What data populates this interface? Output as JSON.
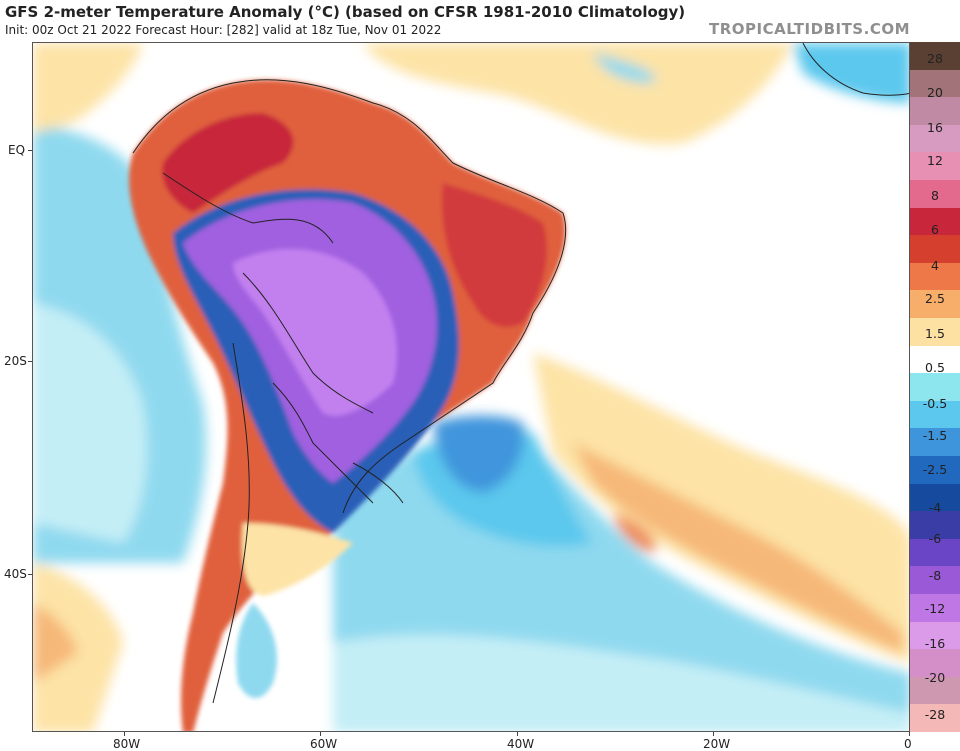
{
  "header": {
    "title": "GFS 2-meter Temperature Anomaly (°C) (based on CFSR 1981-2010 Climatology)",
    "subtitle": "Init: 00z Oct 21 2022   Forecast Hour: [282]   valid at 18z Tue, Nov 01 2022",
    "brand": "TROPICALTIDBITS.COM"
  },
  "axes": {
    "lat_labels": [
      "EQ",
      "20S",
      "40S"
    ],
    "lon_labels": [
      "80W",
      "60W",
      "40W",
      "20W",
      "0"
    ]
  },
  "colorbar": {
    "labels": [
      "28",
      "20",
      "16",
      "12",
      "8",
      "6",
      "4",
      "2.5",
      "1.5",
      "0.5",
      "-0.5",
      "-1.5",
      "-2.5",
      "-4",
      "-6",
      "-8",
      "-12",
      "-16",
      "-20",
      "-28"
    ],
    "colors": [
      "#5a4032",
      "#a3737a",
      "#c18aa4",
      "#d79bc1",
      "#e88fb4",
      "#e36a8d",
      "#c7263b",
      "#d5402e",
      "#ee7848",
      "#f6ae6a",
      "#fde1a2",
      "#ffffff",
      "#8de6ee",
      "#5cc8ed",
      "#3f95dc",
      "#2168bf",
      "#154a9e",
      "#3a3da6",
      "#6a45c6",
      "#9a5ad8",
      "#c077e6",
      "#dc9be9",
      "#d58fc8",
      "#ce98b0",
      "#f4b8b7"
    ]
  },
  "map": {
    "colors": {
      "ocean_cool": "#8fd9ef",
      "ocean_light": "#c4eef6",
      "neutral": "#ffffff",
      "warm_light": "#fde3a6",
      "warm_mid": "#f6b878",
      "warm_strong": "#e0603e",
      "hot": "#c7263b",
      "cool_deep": "#2c5fb8",
      "cold_purple": "#a060e0",
      "cold_violet": "#c280ef",
      "border": "#222222"
    }
  }
}
